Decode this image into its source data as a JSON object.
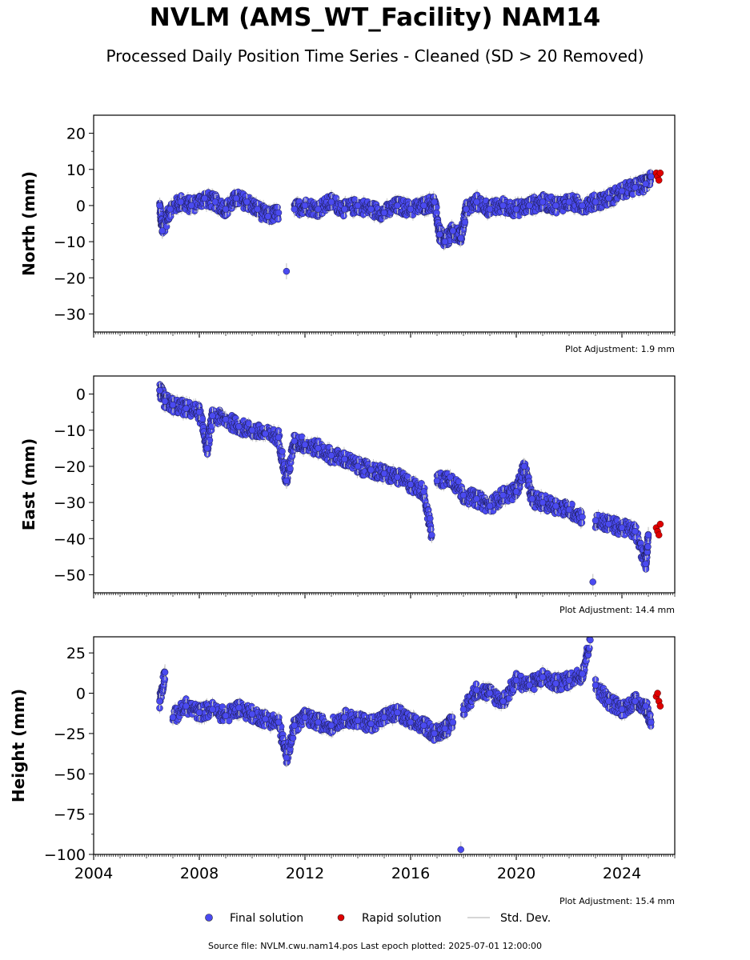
{
  "title": "NVLM (AMS_WT_Facility) NAM14",
  "subtitle": "Processed Daily Position Time Series - Cleaned (SD > 20 Removed)",
  "source": "Source file: NVLM.cwu.nam14.pos  Last epoch plotted: 2025-07-01 12:00:00",
  "legend": {
    "final": "Final solution",
    "rapid": "Rapid solution",
    "std": "Std. Dev."
  },
  "colors": {
    "final": "#4a4af0",
    "rapid": "#e00000",
    "std": "#c8c8c8"
  },
  "chart_data": [
    {
      "type": "scatter",
      "name": "north",
      "ylabel": "North (mm)",
      "adjustment": "Plot Adjustment: 1.9 mm",
      "xlim": [
        2004,
        2026
      ],
      "ylim": [
        -35,
        25
      ],
      "yticks": [
        20,
        10,
        0,
        -10,
        -20,
        -30
      ],
      "ytick_labels": [
        "20",
        "10",
        "0",
        "−10",
        "−20",
        "−30"
      ],
      "xticks": [
        2004,
        2008,
        2012,
        2016,
        2020,
        2024
      ],
      "xtick_labels": [],
      "final_points": [
        [
          2006.5,
          0
        ],
        [
          2006.6,
          -7
        ],
        [
          2006.9,
          -1
        ],
        [
          2007.3,
          1
        ],
        [
          2007.7,
          0
        ],
        [
          2008.2,
          2
        ],
        [
          2008.6,
          1
        ],
        [
          2009.0,
          -1
        ],
        [
          2009.4,
          2
        ],
        [
          2009.8,
          1
        ],
        [
          2010.2,
          -1
        ],
        [
          2010.6,
          -3
        ],
        [
          2011.0,
          -2
        ],
        [
          2011.3,
          -18.2
        ],
        [
          2011.6,
          -1
        ],
        [
          2012.0,
          0
        ],
        [
          2012.5,
          -1
        ],
        [
          2013.0,
          1
        ],
        [
          2013.5,
          -1
        ],
        [
          2014.0,
          0
        ],
        [
          2014.5,
          -1
        ],
        [
          2015.0,
          -2
        ],
        [
          2015.5,
          0
        ],
        [
          2016.0,
          -1
        ],
        [
          2016.5,
          0
        ],
        [
          2016.9,
          1
        ],
        [
          2017.1,
          -8
        ],
        [
          2017.3,
          -10
        ],
        [
          2017.6,
          -7
        ],
        [
          2017.9,
          -9
        ],
        [
          2018.1,
          -1
        ],
        [
          2018.5,
          1
        ],
        [
          2019.0,
          -1
        ],
        [
          2019.5,
          0
        ],
        [
          2020.0,
          -1
        ],
        [
          2020.5,
          0
        ],
        [
          2021.0,
          1
        ],
        [
          2021.5,
          0
        ],
        [
          2022.0,
          1
        ],
        [
          2022.5,
          0
        ],
        [
          2023.0,
          1
        ],
        [
          2023.5,
          2
        ],
        [
          2024.0,
          4
        ],
        [
          2024.5,
          5
        ],
        [
          2024.9,
          6
        ],
        [
          2025.1,
          8
        ]
      ],
      "rapid_points": [
        [
          2025.3,
          9
        ],
        [
          2025.35,
          8
        ],
        [
          2025.4,
          7
        ],
        [
          2025.45,
          9
        ]
      ]
    },
    {
      "type": "scatter",
      "name": "east",
      "ylabel": "East (mm)",
      "adjustment": "Plot Adjustment: 14.4 mm",
      "xlim": [
        2004,
        2026
      ],
      "ylim": [
        -55,
        5
      ],
      "yticks": [
        0,
        -10,
        -20,
        -30,
        -40,
        -50
      ],
      "ytick_labels": [
        "0",
        "−10",
        "−20",
        "−30",
        "−40",
        "−50"
      ],
      "xticks": [
        2004,
        2008,
        2012,
        2016,
        2020,
        2024
      ],
      "xtick_labels": [],
      "final_points": [
        [
          2006.5,
          1
        ],
        [
          2006.7,
          -2
        ],
        [
          2007.0,
          -3
        ],
        [
          2007.5,
          -4
        ],
        [
          2008.0,
          -5
        ],
        [
          2008.3,
          -15
        ],
        [
          2008.5,
          -6
        ],
        [
          2009.0,
          -7
        ],
        [
          2009.5,
          -9
        ],
        [
          2010.0,
          -10
        ],
        [
          2010.5,
          -11
        ],
        [
          2011.0,
          -12
        ],
        [
          2011.3,
          -24
        ],
        [
          2011.6,
          -13
        ],
        [
          2012.0,
          -14
        ],
        [
          2012.5,
          -15
        ],
        [
          2013.0,
          -17
        ],
        [
          2013.5,
          -18
        ],
        [
          2014.0,
          -20
        ],
        [
          2014.5,
          -21
        ],
        [
          2015.0,
          -22
        ],
        [
          2015.5,
          -23
        ],
        [
          2016.0,
          -25
        ],
        [
          2016.5,
          -27
        ],
        [
          2016.8,
          -39
        ],
        [
          2017.0,
          -24
        ],
        [
          2017.5,
          -23
        ],
        [
          2018.0,
          -28
        ],
        [
          2018.5,
          -29
        ],
        [
          2019.0,
          -31
        ],
        [
          2019.5,
          -28
        ],
        [
          2020.0,
          -27
        ],
        [
          2020.3,
          -20
        ],
        [
          2020.6,
          -29
        ],
        [
          2021.0,
          -30
        ],
        [
          2021.5,
          -31
        ],
        [
          2022.0,
          -32
        ],
        [
          2022.5,
          -34
        ],
        [
          2022.9,
          -52
        ],
        [
          2023.0,
          -35
        ],
        [
          2023.5,
          -36
        ],
        [
          2024.0,
          -37
        ],
        [
          2024.5,
          -38
        ],
        [
          2024.9,
          -47
        ],
        [
          2025.0,
          -39
        ]
      ],
      "rapid_points": [
        [
          2025.3,
          -37
        ],
        [
          2025.35,
          -38
        ],
        [
          2025.4,
          -39
        ],
        [
          2025.45,
          -36
        ]
      ]
    },
    {
      "type": "scatter",
      "name": "height",
      "ylabel": "Height (mm)",
      "adjustment": "Plot Adjustment: 15.4 mm",
      "xlim": [
        2004,
        2026
      ],
      "ylim": [
        -100,
        35
      ],
      "yticks": [
        25,
        0,
        -25,
        -50,
        -75,
        -100
      ],
      "ytick_labels": [
        "25",
        "0",
        "−25",
        "−50",
        "−75",
        "−100"
      ],
      "xticks": [
        2004,
        2008,
        2012,
        2016,
        2020,
        2024
      ],
      "xtick_labels": [
        "2004",
        "2008",
        "2012",
        "2016",
        "2020",
        "2024"
      ],
      "final_points": [
        [
          2006.5,
          -5
        ],
        [
          2006.7,
          13
        ],
        [
          2007.0,
          -15
        ],
        [
          2007.5,
          -8
        ],
        [
          2008.0,
          -12
        ],
        [
          2008.5,
          -10
        ],
        [
          2009.0,
          -14
        ],
        [
          2009.5,
          -9
        ],
        [
          2010.0,
          -13
        ],
        [
          2010.5,
          -16
        ],
        [
          2011.0,
          -18
        ],
        [
          2011.3,
          -40
        ],
        [
          2011.6,
          -20
        ],
        [
          2012.0,
          -15
        ],
        [
          2012.5,
          -18
        ],
        [
          2013.0,
          -20
        ],
        [
          2013.5,
          -15
        ],
        [
          2014.0,
          -17
        ],
        [
          2014.5,
          -19
        ],
        [
          2015.0,
          -15
        ],
        [
          2015.5,
          -12
        ],
        [
          2016.0,
          -18
        ],
        [
          2016.5,
          -20
        ],
        [
          2016.9,
          -25
        ],
        [
          2017.3,
          -22
        ],
        [
          2017.6,
          -18
        ],
        [
          2017.9,
          -97
        ],
        [
          2018.0,
          -10
        ],
        [
          2018.5,
          2
        ],
        [
          2019.0,
          0
        ],
        [
          2019.5,
          -5
        ],
        [
          2020.0,
          8
        ],
        [
          2020.5,
          5
        ],
        [
          2021.0,
          10
        ],
        [
          2021.5,
          6
        ],
        [
          2022.0,
          8
        ],
        [
          2022.5,
          12
        ],
        [
          2022.8,
          33
        ],
        [
          2023.0,
          5
        ],
        [
          2023.5,
          -5
        ],
        [
          2024.0,
          -10
        ],
        [
          2024.5,
          -5
        ],
        [
          2024.9,
          -8
        ],
        [
          2025.1,
          -18
        ]
      ],
      "rapid_points": [
        [
          2025.3,
          -2
        ],
        [
          2025.35,
          0
        ],
        [
          2025.4,
          -5
        ],
        [
          2025.45,
          -8
        ]
      ]
    }
  ]
}
